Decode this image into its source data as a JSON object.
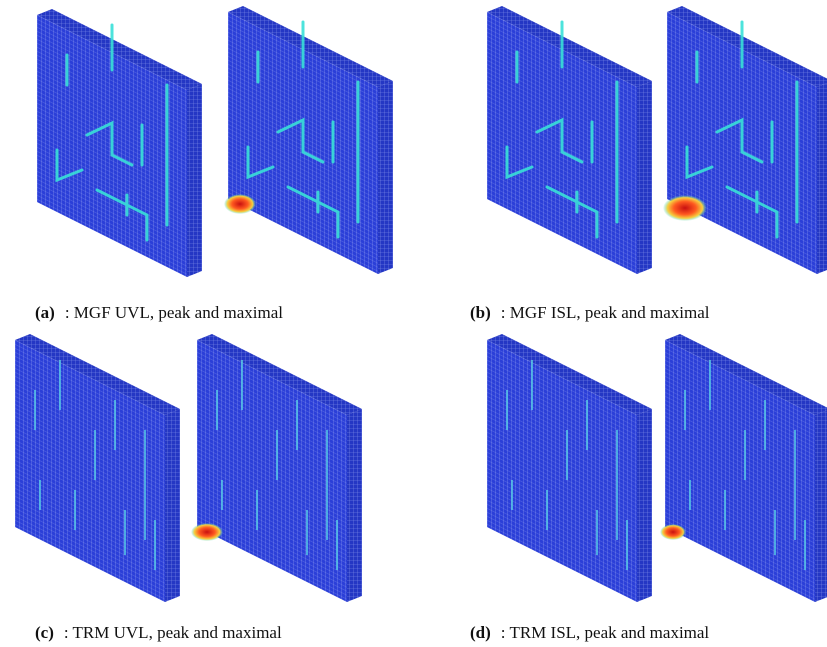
{
  "panels": [
    {
      "label": "(a)",
      "caption": ": MGF UVL, peak and maximal"
    },
    {
      "label": "(b)",
      "caption": ": MGF ISL, peak and maximal"
    },
    {
      "label": "(c)",
      "caption": ": TRM UVL, peak and maximal"
    },
    {
      "label": "(d)",
      "caption": ": TRM ISL, peak and maximal"
    }
  ]
}
